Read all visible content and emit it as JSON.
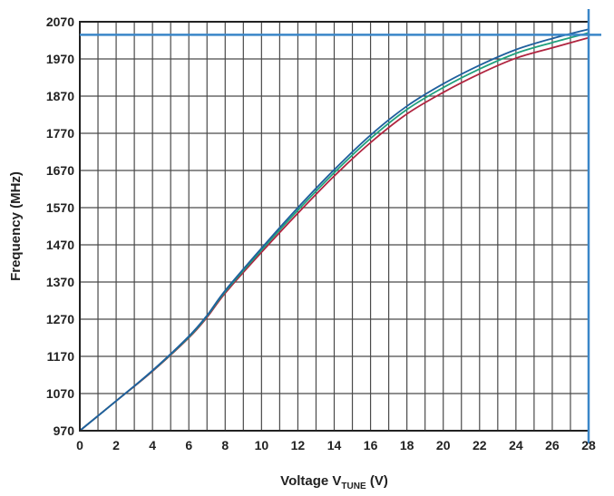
{
  "chart_data": {
    "type": "line",
    "title": "",
    "xlabel": {
      "prefix": "Voltage V",
      "subscript": "TUNE",
      "suffix": " (V)"
    },
    "ylabel": "Frequency (MHz)",
    "xlim": [
      0,
      28
    ],
    "ylim": [
      970,
      2070
    ],
    "xticks": [
      0,
      2,
      4,
      6,
      8,
      10,
      12,
      14,
      16,
      18,
      20,
      22,
      24,
      26,
      28
    ],
    "yticks": [
      970,
      1070,
      1170,
      1270,
      1370,
      1470,
      1570,
      1670,
      1770,
      1870,
      1970,
      2070
    ],
    "grid": true,
    "x_grid_step": 1,
    "legend": "none",
    "series": [
      {
        "color": "#b0243f",
        "x": [
          0,
          2,
          4,
          6,
          7,
          8,
          10,
          12,
          14,
          16,
          18,
          20,
          22,
          24,
          26,
          28
        ],
        "y": [
          970,
          1050,
          1130,
          1220,
          1275,
          1340,
          1450,
          1555,
          1655,
          1745,
          1822,
          1880,
          1930,
          1972,
          2000,
          2027
        ]
      },
      {
        "color": "#1fa07c",
        "x": [
          0,
          2,
          4,
          6,
          7,
          8,
          10,
          12,
          14,
          16,
          18,
          20,
          22,
          24,
          26,
          28
        ],
        "y": [
          970,
          1050,
          1131,
          1222,
          1278,
          1344,
          1456,
          1563,
          1664,
          1756,
          1834,
          1893,
          1943,
          1985,
          2014,
          2040
        ]
      },
      {
        "color": "#1f5f9e",
        "x": [
          0,
          2,
          4,
          6,
          7,
          8,
          10,
          12,
          14,
          16,
          18,
          20,
          22,
          24,
          26,
          28
        ],
        "y": [
          970,
          1050,
          1132,
          1224,
          1280,
          1347,
          1461,
          1570,
          1672,
          1765,
          1843,
          1903,
          1953,
          1995,
          2025,
          2050
        ]
      }
    ],
    "reference_lines": [
      {
        "orientation": "horizontal",
        "value": 2035,
        "color": "#3a86c8"
      },
      {
        "orientation": "vertical",
        "value": 28,
        "color": "#3a86c8"
      }
    ]
  }
}
